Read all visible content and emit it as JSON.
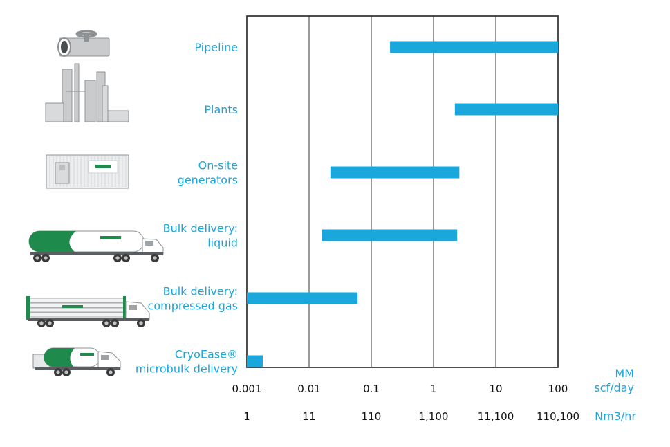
{
  "chart_data": {
    "type": "bar",
    "orientation": "horizontal",
    "scale": "log",
    "xlim": [
      0.001,
      100
    ],
    "grid": true,
    "categories": [
      {
        "lines": [
          "Pipeline"
        ],
        "icon": "pipeline-icon"
      },
      {
        "lines": [
          "Plants"
        ],
        "icon": "plant-icon"
      },
      {
        "lines": [
          "On-site",
          "generators"
        ],
        "icon": "generator-container-icon"
      },
      {
        "lines": [
          "Bulk delivery:",
          "liquid"
        ],
        "icon": "liquid-tanker-truck-icon"
      },
      {
        "lines": [
          "Bulk delivery:",
          "compressed gas"
        ],
        "icon": "tube-trailer-truck-icon"
      },
      {
        "lines": [
          "CryoEase®",
          "microbulk delivery"
        ],
        "icon": "microbulk-truck-icon"
      }
    ],
    "ranges": [
      [
        0.2,
        100
      ],
      [
        2.2,
        100
      ],
      [
        0.022,
        2.6
      ],
      [
        0.016,
        2.4
      ],
      [
        0.001,
        0.06
      ],
      [
        0.001,
        0.0018
      ]
    ],
    "ticks_primary": [
      "0.001",
      "0.01",
      "0.1",
      "1",
      "10",
      "100"
    ],
    "ticks_secondary": [
      "1",
      "11",
      "110",
      "1,100",
      "11,100",
      "110,100"
    ],
    "unit_primary": [
      "MM",
      "scf/day"
    ],
    "unit_secondary": "Nm3/hr",
    "colors": {
      "bar": "#1aa7dc",
      "label": "#1aa7dc",
      "axis": "#222222",
      "grid": "#333333",
      "brand_green": "#1e8a4b"
    }
  }
}
